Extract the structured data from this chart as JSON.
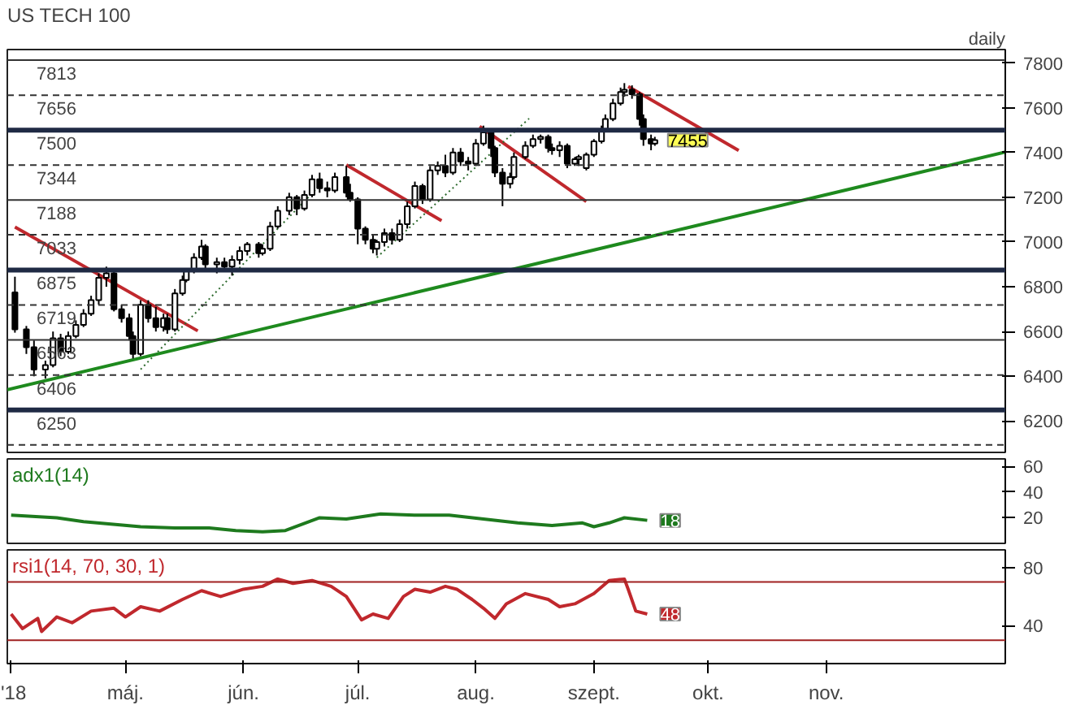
{
  "chart_data": [
    {
      "type": "candlestick",
      "title": "US TECH 100",
      "color": "#000000",
      "x": [
        "2018-04-02",
        "2018-04-05",
        "2018-04-07",
        "2018-04-10",
        "2018-04-12",
        "2018-04-14",
        "2018-04-16",
        "2018-04-18",
        "2018-04-20",
        "2018-04-22",
        "2018-04-24",
        "2018-04-26",
        "2018-04-28",
        "2018-04-30",
        "2018-05-02",
        "2018-05-03",
        "2018-05-05",
        "2018-05-07",
        "2018-05-09",
        "2018-05-11",
        "2018-05-12",
        "2018-05-14",
        "2018-05-16",
        "2018-05-17",
        "2018-05-19",
        "2018-05-21",
        "2018-05-22",
        "2018-05-25",
        "2018-05-27",
        "2018-05-29",
        "2018-05-31",
        "2018-06-02",
        "2018-06-05",
        "2018-06-06",
        "2018-06-08",
        "2018-06-10",
        "2018-06-13",
        "2018-06-15",
        "2018-06-17",
        "2018-06-19",
        "2018-06-21",
        "2018-06-23",
        "2018-06-25",
        "2018-06-28",
        "2018-06-29",
        "2018-07-01",
        "2018-07-03",
        "2018-07-05",
        "2018-07-06",
        "2018-07-08",
        "2018-07-10",
        "2018-07-12",
        "2018-07-14",
        "2018-07-16",
        "2018-07-18",
        "2018-07-20",
        "2018-07-22",
        "2018-07-24",
        "2018-07-26",
        "2018-07-28",
        "2018-07-30",
        "2018-08-01",
        "2018-08-03",
        "2018-08-05",
        "2018-08-06",
        "2018-08-08",
        "2018-08-10",
        "2018-08-11",
        "2018-08-14",
        "2018-08-16",
        "2018-08-18",
        "2018-08-20",
        "2018-08-21",
        "2018-08-23",
        "2018-08-25",
        "2018-08-27",
        "2018-08-28",
        "2018-08-30",
        "2018-09-01",
        "2018-09-03",
        "2018-09-04",
        "2018-09-06",
        "2018-09-08",
        "2018-09-09",
        "2018-09-11",
        "2018-09-13",
        "2018-09-14",
        "2018-09-16",
        "2018-09-17"
      ],
      "ohlc": [
        [
          6775,
          6845,
          6595,
          6610
        ],
        [
          6610,
          6625,
          6500,
          6530
        ],
        [
          6530,
          6560,
          6400,
          6430
        ],
        [
          6430,
          6470,
          6390,
          6450
        ],
        [
          6450,
          6600,
          6440,
          6570
        ],
        [
          6570,
          6590,
          6490,
          6510
        ],
        [
          6510,
          6600,
          6500,
          6580
        ],
        [
          6580,
          6650,
          6570,
          6630
        ],
        [
          6630,
          6700,
          6620,
          6680
        ],
        [
          6680,
          6760,
          6670,
          6740
        ],
        [
          6740,
          6860,
          6720,
          6840
        ],
        [
          6840,
          6890,
          6800,
          6860
        ],
        [
          6860,
          6870,
          6690,
          6700
        ],
        [
          6700,
          6720,
          6640,
          6660
        ],
        [
          6660,
          6680,
          6560,
          6580
        ],
        [
          6580,
          6600,
          6480,
          6500
        ],
        [
          6500,
          6740,
          6490,
          6720
        ],
        [
          6720,
          6740,
          6640,
          6660
        ],
        [
          6660,
          6710,
          6600,
          6620
        ],
        [
          6620,
          6680,
          6600,
          6660
        ],
        [
          6660,
          6680,
          6590,
          6610
        ],
        [
          6610,
          6790,
          6600,
          6770
        ],
        [
          6770,
          6850,
          6760,
          6830
        ],
        [
          6830,
          6880,
          6820,
          6870
        ],
        [
          6870,
          6950,
          6860,
          6930
        ],
        [
          6930,
          7010,
          6920,
          6980
        ],
        [
          6980,
          6990,
          6880,
          6900
        ],
        [
          6900,
          6930,
          6860,
          6910
        ],
        [
          6910,
          6930,
          6870,
          6890
        ],
        [
          6890,
          6940,
          6850,
          6920
        ],
        [
          6920,
          6980,
          6900,
          6960
        ],
        [
          6960,
          7000,
          6940,
          6990
        ],
        [
          6990,
          7000,
          6930,
          6950
        ],
        [
          6950,
          6990,
          6940,
          6970
        ],
        [
          6970,
          7090,
          6960,
          7070
        ],
        [
          7070,
          7160,
          7060,
          7140
        ],
        [
          7140,
          7220,
          7120,
          7200
        ],
        [
          7200,
          7210,
          7120,
          7150
        ],
        [
          7150,
          7230,
          7140,
          7210
        ],
        [
          7210,
          7300,
          7200,
          7280
        ],
        [
          7280,
          7310,
          7220,
          7240
        ],
        [
          7240,
          7270,
          7200,
          7230
        ],
        [
          7230,
          7310,
          7220,
          7290
        ],
        [
          7290,
          7340,
          7200,
          7220
        ],
        [
          7220,
          7260,
          7180,
          7190
        ],
        [
          7190,
          7200,
          6990,
          7060
        ],
        [
          7060,
          7070,
          6990,
          7010
        ],
        [
          7010,
          7030,
          6950,
          6970
        ],
        [
          6970,
          7010,
          6940,
          7000
        ],
        [
          7000,
          7060,
          6980,
          7040
        ],
        [
          7040,
          7060,
          6990,
          7010
        ],
        [
          7010,
          7100,
          7000,
          7080
        ],
        [
          7080,
          7180,
          7060,
          7160
        ],
        [
          7160,
          7270,
          7150,
          7250
        ],
        [
          7250,
          7260,
          7170,
          7190
        ],
        [
          7190,
          7340,
          7180,
          7320
        ],
        [
          7320,
          7360,
          7300,
          7340
        ],
        [
          7340,
          7390,
          7290,
          7310
        ],
        [
          7310,
          7420,
          7300,
          7400
        ],
        [
          7400,
          7420,
          7340,
          7360
        ],
        [
          7360,
          7380,
          7320,
          7350
        ],
        [
          7350,
          7460,
          7340,
          7440
        ],
        [
          7440,
          7520,
          7430,
          7490
        ],
        [
          7490,
          7500,
          7380,
          7420
        ],
        [
          7420,
          7430,
          7290,
          7310
        ],
        [
          7310,
          7330,
          7160,
          7260
        ],
        [
          7260,
          7310,
          7240,
          7290
        ],
        [
          7290,
          7400,
          7280,
          7380
        ],
        [
          7380,
          7450,
          7370,
          7430
        ],
        [
          7430,
          7480,
          7420,
          7460
        ],
        [
          7460,
          7480,
          7440,
          7470
        ],
        [
          7470,
          7480,
          7400,
          7420
        ],
        [
          7420,
          7440,
          7390,
          7410
        ],
        [
          7410,
          7450,
          7380,
          7430
        ],
        [
          7430,
          7440,
          7330,
          7350
        ],
        [
          7350,
          7380,
          7340,
          7370
        ],
        [
          7370,
          7390,
          7340,
          7380
        ],
        [
          7330,
          7400,
          7320,
          7390
        ],
        [
          7390,
          7460,
          7380,
          7450
        ],
        [
          7450,
          7520,
          7440,
          7500
        ],
        [
          7500,
          7570,
          7490,
          7550
        ],
        [
          7550,
          7640,
          7540,
          7620
        ],
        [
          7620,
          7690,
          7610,
          7670
        ],
        [
          7670,
          7710,
          7650,
          7680
        ],
        [
          7680,
          7700,
          7640,
          7660
        ],
        [
          7660,
          7670,
          7520,
          7550
        ],
        [
          7550,
          7570,
          7430,
          7460
        ],
        [
          7460,
          7480,
          7410,
          7440
        ],
        [
          7440,
          7470,
          7430,
          7455
        ]
      ],
      "series": [
        {
          "type": "line",
          "color": "#1e8a1e",
          "line_style": "solid",
          "x": [
            "2018-03-31",
            "2018-12-18"
          ],
          "values": [
            6340,
            7402
          ]
        },
        {
          "type": "line",
          "color": "#c0282d",
          "line_style": "solid",
          "x": [
            "2018-04-02",
            "2018-05-20"
          ],
          "values": [
            7067,
            6603
          ]
        },
        {
          "type": "line",
          "color": "#c0282d",
          "line_style": "solid",
          "x": [
            "2018-06-28",
            "2018-07-23"
          ],
          "values": [
            7345,
            7095
          ]
        },
        {
          "type": "line",
          "color": "#c0282d",
          "line_style": "solid",
          "x": [
            "2018-08-02",
            "2018-08-30"
          ],
          "values": [
            7517,
            7181
          ]
        },
        {
          "type": "line",
          "color": "#c0282d",
          "line_style": "solid",
          "x": [
            "2018-09-10",
            "2018-10-09"
          ],
          "values": [
            7695,
            7409
          ]
        },
        {
          "type": "line",
          "color": "#2e6b2e",
          "line_style": "dotted",
          "x": [
            "2018-05-05",
            "2018-06-21"
          ],
          "values": [
            6431,
            7252
          ]
        },
        {
          "type": "line",
          "color": "#2e6b2e",
          "line_style": "dotted",
          "x": [
            "2018-07-06",
            "2018-08-15"
          ],
          "values": [
            6931,
            7552
          ]
        }
      ],
      "ref_lines": [
        {
          "axis": "y",
          "value": 7813,
          "label": "7813",
          "color": "#333333",
          "line_style": "solid"
        },
        {
          "axis": "y",
          "value": 7656,
          "label": "7656",
          "color": "#333333",
          "line_style": "dashed"
        },
        {
          "axis": "y",
          "value": 7500,
          "label": "7500",
          "color": "#1f2a44",
          "line_style": "solid"
        },
        {
          "axis": "y",
          "value": 7344,
          "label": "7344",
          "color": "#333333",
          "line_style": "dashed"
        },
        {
          "axis": "y",
          "value": 7188,
          "label": "7188",
          "color": "#333333",
          "line_style": "solid"
        },
        {
          "axis": "y",
          "value": 7033,
          "label": "7033",
          "color": "#333333",
          "line_style": "dashed"
        },
        {
          "axis": "y",
          "value": 6875,
          "label": "6875",
          "color": "#1f2a44",
          "line_style": "solid"
        },
        {
          "axis": "y",
          "value": 6719,
          "label": "6719",
          "color": "#333333",
          "line_style": "dashed"
        },
        {
          "axis": "y",
          "value": 6563,
          "label": "6563",
          "color": "#333333",
          "line_style": "solid"
        },
        {
          "axis": "y",
          "value": 6406,
          "label": "6406",
          "color": "#333333",
          "line_style": "dashed"
        },
        {
          "axis": "y",
          "value": 6250,
          "label": "6250",
          "color": "#1f2a44",
          "line_style": "solid"
        },
        {
          "axis": "y",
          "value": 6094,
          "label": null,
          "color": "#333333",
          "line_style": "dashed"
        }
      ],
      "annotations": [
        "daily",
        {
          "text": "7455",
          "x": "2018-09-17",
          "y": 7455
        }
      ],
      "xlim": [
        "2018-03-31",
        "2018-12-18"
      ],
      "ylim": [
        6060,
        7860
      ],
      "yticks": [
        6200,
        6400,
        6600,
        6800,
        7000,
        7200,
        7400,
        7600,
        7800
      ],
      "grid": false,
      "tick_labels": "y"
    },
    {
      "type": "line",
      "title": "adx1(14)",
      "series": [
        {
          "color": "#1e7a1e",
          "x": [
            "2018-04-01",
            "2018-04-13",
            "2018-04-20",
            "2018-05-05",
            "2018-05-14",
            "2018-05-23",
            "2018-05-30",
            "2018-06-06",
            "2018-06-12",
            "2018-06-21",
            "2018-06-28",
            "2018-07-07",
            "2018-07-16",
            "2018-07-25",
            "2018-08-03",
            "2018-08-12",
            "2018-08-21",
            "2018-08-29",
            "2018-09-01",
            "2018-09-05",
            "2018-09-09",
            "2018-09-15"
          ],
          "values": [
            22,
            20,
            17,
            13,
            12,
            12,
            10,
            9,
            10,
            20,
            19,
            23,
            22,
            22,
            19,
            16,
            14,
            16,
            13,
            16,
            20,
            18
          ]
        }
      ],
      "annotations": [
        {
          "text": "18",
          "x": "2018-09-15",
          "y": 18
        }
      ],
      "xlim": [
        "2018-03-31",
        "2018-12-18"
      ],
      "ylim": [
        0,
        66
      ],
      "yticks": [
        20,
        40,
        60
      ],
      "grid": false,
      "tick_labels": "y"
    },
    {
      "type": "line",
      "title": "rsi1(14, 70, 30, 1)",
      "series": [
        {
          "color": "#c0282d",
          "x": [
            "2018-04-01",
            "2018-04-04",
            "2018-04-08",
            "2018-04-09",
            "2018-04-13",
            "2018-04-17",
            "2018-04-22",
            "2018-04-28",
            "2018-05-01",
            "2018-05-05",
            "2018-05-10",
            "2018-05-16",
            "2018-05-21",
            "2018-05-26",
            "2018-06-01",
            "2018-06-06",
            "2018-06-10",
            "2018-06-14",
            "2018-06-19",
            "2018-06-24",
            "2018-06-28",
            "2018-07-02",
            "2018-07-05",
            "2018-07-09",
            "2018-07-13",
            "2018-07-16",
            "2018-07-20",
            "2018-07-24",
            "2018-07-27",
            "2018-07-31",
            "2018-08-03",
            "2018-08-06",
            "2018-08-09",
            "2018-08-14",
            "2018-08-20",
            "2018-08-23",
            "2018-08-27",
            "2018-09-01",
            "2018-09-05",
            "2018-09-09",
            "2018-09-10",
            "2018-09-12",
            "2018-09-15"
          ],
          "values": [
            48,
            38,
            45,
            36,
            46,
            42,
            50,
            52,
            46,
            53,
            50,
            58,
            64,
            60,
            65,
            67,
            72,
            69,
            71,
            67,
            60,
            44,
            48,
            45,
            60,
            65,
            63,
            67,
            65,
            58,
            52,
            45,
            55,
            62,
            58,
            53,
            55,
            62,
            71,
            72,
            65,
            50,
            48
          ]
        }
      ],
      "ref_lines": [
        {
          "axis": "y",
          "value": 70,
          "color": "#a02020",
          "line_style": "solid"
        },
        {
          "axis": "y",
          "value": 30,
          "color": "#a02020",
          "line_style": "solid"
        }
      ],
      "annotations": [
        {
          "text": "48",
          "x": "2018-09-15",
          "y": 48
        }
      ],
      "xlim": [
        "2018-03-31",
        "2018-12-18"
      ],
      "ylim": [
        14,
        92
      ],
      "yticks": [
        40,
        80
      ],
      "xticks": [
        {
          "value": "2018-04-01",
          "label": "'18"
        },
        {
          "value": "2018-05-01",
          "label": "máj."
        },
        {
          "value": "2018-06-01",
          "label": "jún."
        },
        {
          "value": "2018-07-01",
          "label": "júl."
        },
        {
          "value": "2018-08-01",
          "label": "aug."
        },
        {
          "value": "2018-09-01",
          "label": "szept."
        },
        {
          "value": "2018-10-01",
          "label": "okt."
        },
        {
          "value": "2018-11-01",
          "label": "nov."
        }
      ],
      "grid": false
    }
  ]
}
